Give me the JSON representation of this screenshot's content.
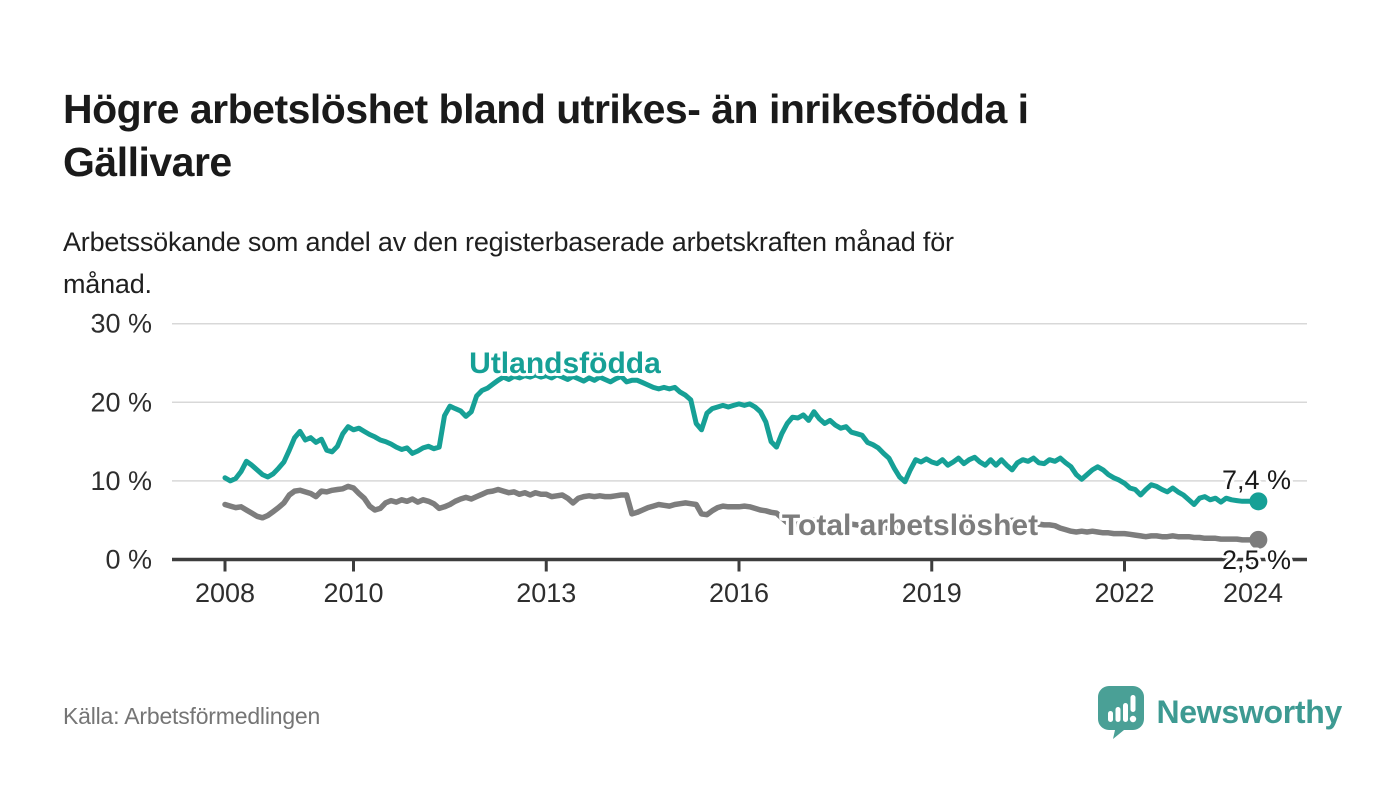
{
  "header": {
    "title_lines": [
      "Högre arbetslöshet bland utrikes- än inrikesfödda i",
      "Gällivare"
    ],
    "subtitle_lines": [
      "Arbetssökande som andel av den registerbaserade arbetskraften månad för",
      "månad."
    ]
  },
  "footer": {
    "source": "Källa: Arbetsförmedlingen",
    "brand": "Newsworthy"
  },
  "colors": {
    "accent_teal": "#16a096",
    "series_gray": "#7d7d7d",
    "grid": "#d8d8d8",
    "axis": "#3d3d3d",
    "text": "#1a1a1a",
    "muted": "#757575",
    "brand_icon": "#4aa096",
    "brand_text": "#3d9a92"
  },
  "chart_data": {
    "type": "line",
    "x_unit": "month",
    "x_start": "2008-01",
    "x_end": "2024-02",
    "ylim": [
      0,
      30
    ],
    "grid": true,
    "y_ticks": [
      {
        "value": 30,
        "label": "30 %"
      },
      {
        "value": 20,
        "label": "20 %"
      },
      {
        "value": 10,
        "label": "10 %"
      },
      {
        "value": 0,
        "label": "0 %"
      }
    ],
    "x_ticks": [
      {
        "year": 2008,
        "label": "2008"
      },
      {
        "year": 2010,
        "label": "2010"
      },
      {
        "year": 2013,
        "label": "2013"
      },
      {
        "year": 2016,
        "label": "2016"
      },
      {
        "year": 2019,
        "label": "2019"
      },
      {
        "year": 2022,
        "label": "2022"
      },
      {
        "year": 2024,
        "label": "2024"
      }
    ],
    "series": [
      {
        "name": "Utlandsfödda",
        "color": "#16a096",
        "end_label": "7,4 %",
        "end_value": 7.4,
        "values": [
          10.4,
          10.0,
          10.3,
          11.2,
          12.5,
          12.0,
          11.4,
          10.8,
          10.5,
          10.9,
          11.6,
          12.4,
          13.9,
          15.5,
          16.3,
          15.2,
          15.5,
          14.9,
          15.3,
          13.9,
          13.7,
          14.4,
          16.0,
          16.9,
          16.5,
          16.7,
          16.3,
          15.9,
          15.6,
          15.2,
          15.0,
          14.7,
          14.3,
          14.0,
          14.2,
          13.5,
          13.8,
          14.2,
          14.4,
          14.1,
          14.3,
          18.3,
          19.5,
          19.2,
          18.9,
          18.2,
          18.8,
          20.8,
          21.5,
          21.8,
          22.3,
          22.8,
          23.2,
          22.9,
          23.3,
          23.1,
          23.4,
          23.2,
          23.5,
          23.2,
          23.4,
          23.1,
          23.5,
          23.2,
          22.9,
          23.3,
          23.0,
          22.7,
          23.1,
          22.8,
          23.2,
          22.9,
          22.6,
          23.0,
          23.3,
          22.6,
          22.8,
          22.8,
          22.5,
          22.2,
          21.9,
          21.7,
          21.9,
          21.7,
          21.9,
          21.3,
          20.9,
          20.3,
          17.3,
          16.5,
          18.6,
          19.2,
          19.4,
          19.6,
          19.4,
          19.6,
          19.8,
          19.6,
          19.8,
          19.4,
          18.8,
          17.5,
          15.0,
          14.3,
          16.0,
          17.3,
          18.1,
          18.0,
          18.4,
          17.7,
          18.8,
          17.9,
          17.3,
          17.7,
          17.1,
          16.7,
          16.9,
          16.2,
          16.0,
          15.8,
          14.9,
          14.6,
          14.2,
          13.5,
          12.9,
          11.6,
          10.5,
          9.9,
          11.4,
          12.7,
          12.4,
          12.8,
          12.4,
          12.2,
          12.7,
          12.0,
          12.4,
          12.9,
          12.2,
          12.7,
          13.0,
          12.4,
          12.0,
          12.7,
          12.0,
          12.7,
          12.0,
          11.4,
          12.3,
          12.7,
          12.5,
          12.9,
          12.3,
          12.2,
          12.7,
          12.5,
          12.9,
          12.3,
          11.8,
          10.8,
          10.2,
          10.8,
          11.4,
          11.8,
          11.4,
          10.8,
          10.4,
          10.1,
          9.7,
          9.1,
          8.9,
          8.2,
          8.9,
          9.5,
          9.3,
          8.9,
          8.6,
          9.1,
          8.6,
          8.2,
          7.6,
          7.0,
          7.8,
          8.0,
          7.6,
          7.8,
          7.3,
          7.8,
          7.6,
          7.5,
          7.4,
          7.4,
          7.4,
          7.4
        ]
      },
      {
        "name": "Total arbetslöshet",
        "color": "#7d7d7d",
        "end_label": "2,5 %",
        "end_value": 2.5,
        "values": [
          7.0,
          6.8,
          6.6,
          6.7,
          6.3,
          5.9,
          5.5,
          5.3,
          5.6,
          6.1,
          6.6,
          7.2,
          8.2,
          8.7,
          8.8,
          8.6,
          8.4,
          8.0,
          8.7,
          8.6,
          8.8,
          8.9,
          9.0,
          9.3,
          9.1,
          8.4,
          7.8,
          6.8,
          6.3,
          6.5,
          7.2,
          7.5,
          7.3,
          7.6,
          7.4,
          7.7,
          7.3,
          7.6,
          7.4,
          7.1,
          6.5,
          6.7,
          7.0,
          7.4,
          7.7,
          7.9,
          7.7,
          8.0,
          8.3,
          8.6,
          8.7,
          8.9,
          8.7,
          8.5,
          8.6,
          8.3,
          8.5,
          8.2,
          8.5,
          8.3,
          8.3,
          8.0,
          8.1,
          8.2,
          7.8,
          7.2,
          7.8,
          8.0,
          8.1,
          8.0,
          8.1,
          8.0,
          8.0,
          8.1,
          8.2,
          8.2,
          5.8,
          6.0,
          6.3,
          6.6,
          6.8,
          7.0,
          6.9,
          6.8,
          7.0,
          7.1,
          7.2,
          7.1,
          7.0,
          5.8,
          5.7,
          6.2,
          6.6,
          6.8,
          6.7,
          6.7,
          6.7,
          6.8,
          6.7,
          6.5,
          6.3,
          6.2,
          6.0,
          5.9,
          5.3,
          4.7,
          4.4,
          4.5,
          4.7,
          4.9,
          5.0,
          4.9,
          4.8,
          4.7,
          4.6,
          4.5,
          4.4,
          4.5,
          4.4,
          4.3,
          4.4,
          4.3,
          4.2,
          4.1,
          4.0,
          4.1,
          4.2,
          4.1,
          4.0,
          4.2,
          4.3,
          4.4,
          4.5,
          4.4,
          4.3,
          4.4,
          4.5,
          4.4,
          4.3,
          4.4,
          4.5,
          4.6,
          4.5,
          4.4,
          4.5,
          4.6,
          4.8,
          5.0,
          4.9,
          4.8,
          4.7,
          4.6,
          4.5,
          4.4,
          4.4,
          4.3,
          4.0,
          3.8,
          3.6,
          3.5,
          3.6,
          3.5,
          3.6,
          3.5,
          3.4,
          3.4,
          3.3,
          3.3,
          3.3,
          3.2,
          3.1,
          3.0,
          2.9,
          3.0,
          3.0,
          2.9,
          2.9,
          3.0,
          2.9,
          2.9,
          2.9,
          2.8,
          2.8,
          2.7,
          2.7,
          2.7,
          2.6,
          2.6,
          2.6,
          2.6,
          2.5,
          2.5,
          2.5,
          2.5
        ]
      }
    ]
  }
}
